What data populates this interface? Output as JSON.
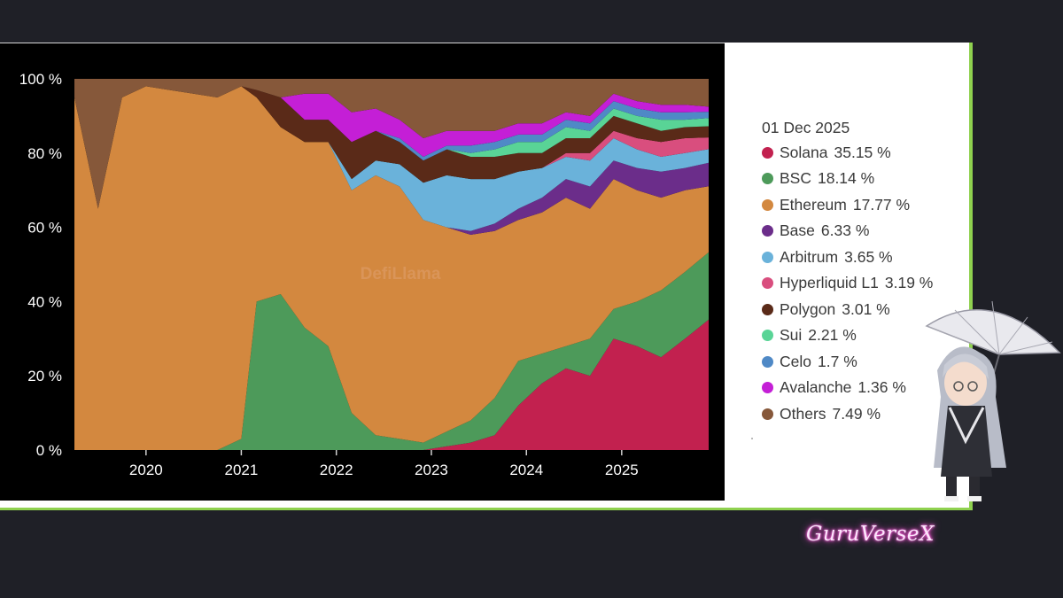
{
  "brand": {
    "label": "GuruVerseX"
  },
  "watermark": {
    "text": "DefiLlama"
  },
  "chart_data": {
    "type": "area",
    "stacked": true,
    "normalized": true,
    "title": "",
    "xlabel": "",
    "ylabel": "",
    "ylim": [
      0,
      100
    ],
    "y_unit": "%",
    "y_ticks": [
      "0 %",
      "20 %",
      "40 %",
      "60 %",
      "80 %",
      "100 %"
    ],
    "x_ticks": [
      "2020",
      "2021",
      "2022",
      "2023",
      "2024",
      "2025"
    ],
    "grid": false,
    "legend_position": "right",
    "legend_date": "01 Dec 2025",
    "x": [
      "2019-04",
      "2019-07",
      "2019-10",
      "2020-01",
      "2020-04",
      "2020-07",
      "2020-10",
      "2021-01",
      "2021-03",
      "2021-06",
      "2021-09",
      "2021-12",
      "2022-03",
      "2022-06",
      "2022-09",
      "2022-12",
      "2023-03",
      "2023-06",
      "2023-09",
      "2023-12",
      "2024-03",
      "2024-06",
      "2024-09",
      "2024-12",
      "2025-03",
      "2025-06",
      "2025-09",
      "2025-12"
    ],
    "series": [
      {
        "name": "Solana",
        "color": "#c2214f",
        "label": "35.15 %",
        "values": [
          0,
          0,
          0,
          0,
          0,
          0,
          0,
          0,
          0,
          0,
          0,
          0,
          0,
          0,
          0,
          0,
          1,
          2,
          4,
          12,
          18,
          22,
          20,
          30,
          28,
          25,
          30,
          35.15
        ]
      },
      {
        "name": "BSC",
        "color": "#4d9a5a",
        "label": "18.14 %",
        "values": [
          0,
          0,
          0,
          0,
          0,
          0,
          0,
          3,
          40,
          42,
          33,
          28,
          10,
          4,
          3,
          2,
          4,
          6,
          10,
          12,
          8,
          6,
          10,
          8,
          12,
          18,
          18,
          18.14
        ]
      },
      {
        "name": "Ethereum",
        "color": "#d3883f",
        "label": "17.77 %",
        "values": [
          95,
          65,
          95,
          98,
          97,
          96,
          95,
          95,
          55,
          45,
          50,
          55,
          60,
          70,
          68,
          60,
          55,
          50,
          45,
          38,
          38,
          40,
          35,
          35,
          30,
          25,
          22,
          17.77
        ]
      },
      {
        "name": "Base",
        "color": "#6b2d8a",
        "label": "6.33 %",
        "values": [
          0,
          0,
          0,
          0,
          0,
          0,
          0,
          0,
          0,
          0,
          0,
          0,
          0,
          0,
          0,
          0,
          0,
          1,
          2,
          3,
          4,
          5,
          6,
          5,
          6,
          7,
          6,
          6.33
        ]
      },
      {
        "name": "Arbitrum",
        "color": "#6ab2da",
        "label": "3.65 %",
        "values": [
          0,
          0,
          0,
          0,
          0,
          0,
          0,
          0,
          0,
          0,
          0,
          0,
          3,
          4,
          6,
          10,
          14,
          14,
          12,
          10,
          8,
          6,
          7,
          6,
          5,
          4,
          4,
          3.65
        ]
      },
      {
        "name": "Hyperliquid L1",
        "color": "#d94e7e",
        "label": "3.19 %",
        "values": [
          0,
          0,
          0,
          0,
          0,
          0,
          0,
          0,
          0,
          0,
          0,
          0,
          0,
          0,
          0,
          0,
          0,
          0,
          0,
          0,
          0,
          1,
          2,
          2,
          3,
          4,
          4,
          3.19
        ]
      },
      {
        "name": "Polygon",
        "color": "#5a2a18",
        "label": "3.01 %",
        "values": [
          0,
          0,
          0,
          0,
          0,
          0,
          0,
          0,
          2,
          8,
          6,
          6,
          10,
          8,
          6,
          6,
          7,
          6,
          6,
          5,
          4,
          4,
          4,
          4,
          4,
          3,
          3,
          3.01
        ]
      },
      {
        "name": "Sui",
        "color": "#59d496",
        "label": "2.21 %",
        "values": [
          0,
          0,
          0,
          0,
          0,
          0,
          0,
          0,
          0,
          0,
          0,
          0,
          0,
          0,
          0,
          0,
          0,
          1,
          2,
          3,
          3,
          3,
          2,
          2,
          2,
          3,
          2,
          2.21
        ]
      },
      {
        "name": "Celo",
        "color": "#4f89c6",
        "label": "1.7 %",
        "values": [
          0,
          0,
          0,
          0,
          0,
          0,
          0,
          0,
          0,
          0,
          0,
          0,
          0,
          0,
          1,
          1,
          1,
          2,
          2,
          2,
          2,
          2,
          2,
          2,
          2,
          2,
          2,
          1.7
        ]
      },
      {
        "name": "Avalanche",
        "color": "#c41fd6",
        "label": "1.36 %",
        "values": [
          0,
          0,
          0,
          0,
          0,
          0,
          0,
          0,
          0,
          0,
          7,
          7,
          8,
          6,
          5,
          5,
          4,
          4,
          3,
          3,
          3,
          2,
          2,
          2,
          2,
          2,
          2,
          1.36
        ]
      },
      {
        "name": "Others",
        "color": "#86583a",
        "label": "7.49 %",
        "values": [
          5,
          35,
          5,
          2,
          3,
          4,
          5,
          2,
          3,
          5,
          4,
          4,
          9,
          8,
          11,
          16,
          14,
          14,
          14,
          12,
          12,
          9,
          10,
          4,
          6,
          7,
          7,
          7.49
        ]
      }
    ]
  }
}
